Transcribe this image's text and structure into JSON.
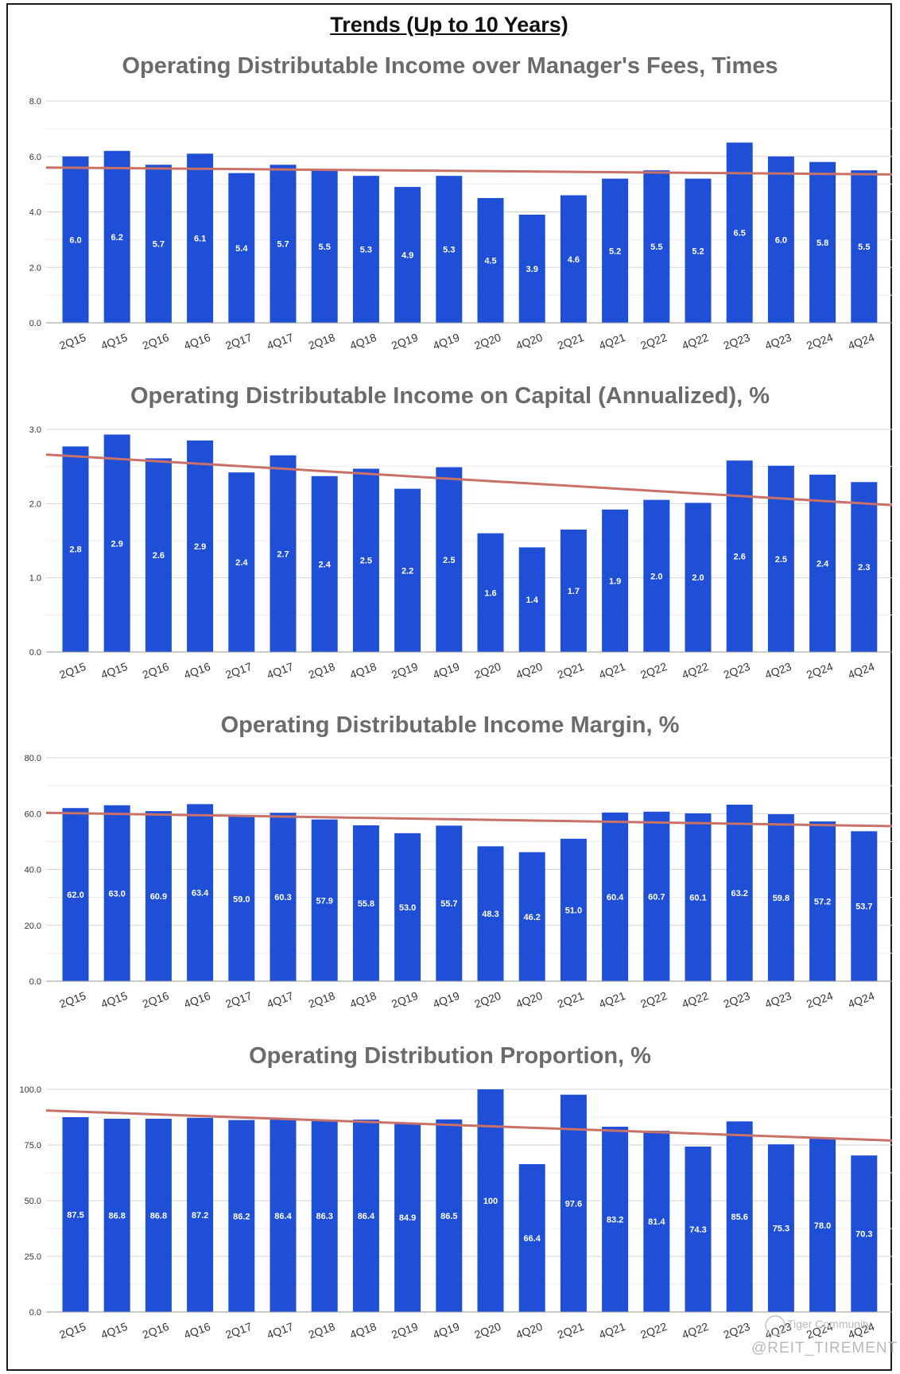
{
  "page": {
    "title": "Trends (Up to 10 Years)",
    "watermark_top": "Tiger Community",
    "watermark_bottom": "@REIT_TIREMENT"
  },
  "colors": {
    "bar": "#1f4fd6",
    "trend": "#c97068",
    "title": "#6b6b6b",
    "grid": "#d6d6d6",
    "axis_text": "#333333",
    "label": "#ffffff"
  },
  "chart_data": [
    {
      "type": "bar",
      "title": "Operating Distributable Income over Manager's Fees, Times",
      "categories": [
        "2Q15",
        "4Q15",
        "2Q16",
        "4Q16",
        "2Q17",
        "4Q17",
        "2Q18",
        "4Q18",
        "2Q19",
        "4Q19",
        "2Q20",
        "4Q20",
        "2Q21",
        "4Q21",
        "2Q22",
        "4Q22",
        "2Q23",
        "4Q23",
        "2Q24",
        "4Q24"
      ],
      "values": [
        6.0,
        6.2,
        5.7,
        6.1,
        5.4,
        5.7,
        5.5,
        5.3,
        4.9,
        5.3,
        4.5,
        3.9,
        4.6,
        5.2,
        5.5,
        5.2,
        6.5,
        6.0,
        5.8,
        5.5
      ],
      "labels": [
        "6.0",
        "6.2",
        "5.7",
        "6.1",
        "5.4",
        "5.7",
        "5.5",
        "5.3",
        "4.9",
        "5.3",
        "4.5",
        "3.9",
        "4.6",
        "5.2",
        "5.5",
        "5.2",
        "6.5",
        "6.0",
        "5.8",
        "5.5"
      ],
      "yticks": [
        "0.0",
        "2.0",
        "4.0",
        "6.0",
        "8.0"
      ],
      "ylim": [
        0,
        8
      ],
      "trendline": [
        5.6,
        5.35
      ]
    },
    {
      "type": "bar",
      "title": "Operating Distributable Income on Capital (Annualized), %",
      "categories": [
        "2Q15",
        "4Q15",
        "2Q16",
        "4Q16",
        "2Q17",
        "4Q17",
        "2Q18",
        "4Q18",
        "2Q19",
        "4Q19",
        "2Q20",
        "4Q20",
        "2Q21",
        "4Q21",
        "2Q22",
        "4Q22",
        "2Q23",
        "4Q23",
        "2Q24",
        "4Q24"
      ],
      "values": [
        2.77,
        2.93,
        2.61,
        2.85,
        2.42,
        2.65,
        2.37,
        2.47,
        2.2,
        2.49,
        1.6,
        1.41,
        1.65,
        1.92,
        2.05,
        2.01,
        2.58,
        2.51,
        2.39,
        2.29
      ],
      "labels": [
        "2.8",
        "2.9",
        "2.6",
        "2.9",
        "2.4",
        "2.7",
        "2.4",
        "2.5",
        "2.2",
        "2.5",
        "1.6",
        "1.4",
        "1.7",
        "1.9",
        "2.0",
        "2.0",
        "2.6",
        "2.5",
        "2.4",
        "2.3"
      ],
      "yticks": [
        "0.0",
        "1.0",
        "2.0",
        "3.0"
      ],
      "ylim": [
        0,
        3
      ],
      "trendline": [
        2.66,
        1.98
      ]
    },
    {
      "type": "bar",
      "title": "Operating Distributable Income Margin, %",
      "categories": [
        "2Q15",
        "4Q15",
        "2Q16",
        "4Q16",
        "2Q17",
        "4Q17",
        "2Q18",
        "4Q18",
        "2Q19",
        "4Q19",
        "2Q20",
        "4Q20",
        "2Q21",
        "4Q21",
        "2Q22",
        "4Q22",
        "2Q23",
        "4Q23",
        "2Q24",
        "4Q24"
      ],
      "values": [
        62.0,
        63.0,
        60.9,
        63.4,
        59.0,
        60.3,
        57.9,
        55.8,
        53.0,
        55.7,
        48.3,
        46.2,
        51.0,
        60.4,
        60.7,
        60.1,
        63.2,
        59.8,
        57.2,
        53.7
      ],
      "labels": [
        "62.0",
        "63.0",
        "60.9",
        "63.4",
        "59.0",
        "60.3",
        "57.9",
        "55.8",
        "53.0",
        "55.7",
        "48.3",
        "46.2",
        "51.0",
        "60.4",
        "60.7",
        "60.1",
        "63.2",
        "59.8",
        "57.2",
        "53.7"
      ],
      "yticks": [
        "0.0",
        "20.0",
        "40.0",
        "60.0",
        "80.0"
      ],
      "ylim": [
        0,
        80
      ],
      "trendline": [
        60.3,
        55.5
      ]
    },
    {
      "type": "bar",
      "title": "Operating Distribution Proportion, %",
      "categories": [
        "2Q15",
        "4Q15",
        "2Q16",
        "4Q16",
        "2Q17",
        "4Q17",
        "2Q18",
        "4Q18",
        "2Q19",
        "4Q19",
        "2Q20",
        "4Q20",
        "2Q21",
        "4Q21",
        "2Q22",
        "4Q22",
        "2Q23",
        "4Q23",
        "2Q24",
        "4Q24"
      ],
      "values": [
        87.5,
        86.8,
        86.8,
        87.2,
        86.2,
        86.4,
        86.3,
        86.4,
        84.9,
        86.5,
        100,
        66.4,
        97.6,
        83.2,
        81.4,
        74.3,
        85.6,
        75.3,
        78.0,
        70.3
      ],
      "labels": [
        "87.5",
        "86.8",
        "86.8",
        "87.2",
        "86.2",
        "86.4",
        "86.3",
        "86.4",
        "84.9",
        "86.5",
        "100",
        "66.4",
        "97.6",
        "83.2",
        "81.4",
        "74.3",
        "85.6",
        "75.3",
        "78.0",
        "70.3"
      ],
      "yticks": [
        "0.0",
        "25.0",
        "50.0",
        "75.0",
        "100.0"
      ],
      "ylim": [
        0,
        100
      ],
      "trendline": [
        90.5,
        77.0
      ]
    }
  ]
}
